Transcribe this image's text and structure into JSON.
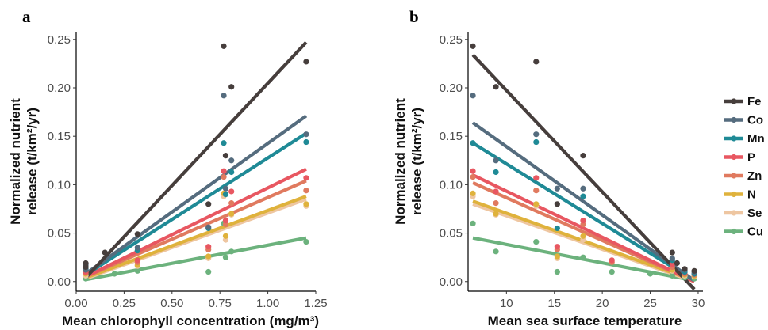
{
  "legend": [
    "Fe",
    "Co",
    "Mn",
    "P",
    "Zn",
    "N",
    "Se",
    "Cu"
  ],
  "colors": {
    "Fe": "#463e3c",
    "Co": "#556c7e",
    "Mn": "#1f8a96",
    "P": "#e85761",
    "Zn": "#e07a5f",
    "N": "#dfb23c",
    "Se": "#eec6a1",
    "Cu": "#6cb27d"
  },
  "chart_data": [
    {
      "type": "scatter",
      "panel_label": "a",
      "xlabel": "Mean chlorophyll concentration (mg/m³)",
      "ylabel_line1": "Normalized nutrient",
      "ylabel_line2": "release (t/km²/yr)",
      "xlim": [
        0,
        1.25
      ],
      "ylim": [
        -0.01,
        0.258
      ],
      "xticks": [
        0.0,
        0.25,
        0.5,
        0.75,
        1.0,
        1.25
      ],
      "xtick_labels": [
        "0.00",
        "0.25",
        "0.50",
        "0.75",
        "1.00",
        "1.25"
      ],
      "yticks": [
        0.0,
        0.05,
        0.1,
        0.15,
        0.2,
        0.25
      ],
      "ytick_labels": [
        "0.00",
        "0.05",
        "0.10",
        "0.15",
        "0.20",
        "0.25"
      ],
      "grid": false,
      "series": [
        {
          "name": "Fe",
          "x": [
            0.05,
            0.05,
            0.15,
            0.32,
            0.69,
            0.77,
            0.78,
            0.81,
            1.2
          ],
          "y": [
            0.019,
            0.015,
            0.03,
            0.049,
            0.08,
            0.243,
            0.13,
            0.201,
            0.227
          ],
          "fit": [
            [
              0.05,
              0.004
            ],
            [
              1.2,
              0.247
            ]
          ]
        },
        {
          "name": "Co",
          "x": [
            0.05,
            0.05,
            0.32,
            0.69,
            0.77,
            0.78,
            0.81,
            1.2
          ],
          "y": [
            0.017,
            0.012,
            0.035,
            0.056,
            0.192,
            0.096,
            0.125,
            0.152
          ],
          "fit": [
            [
              0.05,
              0.008
            ],
            [
              1.2,
              0.171
            ]
          ]
        },
        {
          "name": "Mn",
          "x": [
            0.05,
            0.32,
            0.69,
            0.77,
            0.78,
            0.81,
            1.2
          ],
          "y": [
            0.013,
            0.032,
            0.055,
            0.143,
            0.09,
            0.113,
            0.144
          ],
          "fit": [
            [
              0.05,
              0.007
            ],
            [
              1.2,
              0.153
            ]
          ]
        },
        {
          "name": "P",
          "x": [
            0.05,
            0.32,
            0.69,
            0.77,
            0.78,
            0.81,
            1.2
          ],
          "y": [
            0.01,
            0.022,
            0.036,
            0.114,
            0.063,
            0.093,
            0.107
          ],
          "fit": [
            [
              0.05,
              0.005
            ],
            [
              1.2,
              0.116
            ]
          ]
        },
        {
          "name": "Zn",
          "x": [
            0.05,
            0.32,
            0.69,
            0.77,
            0.78,
            0.81,
            1.2
          ],
          "y": [
            0.009,
            0.02,
            0.033,
            0.108,
            0.059,
            0.081,
            0.094
          ],
          "fit": [
            [
              0.05,
              0.005
            ],
            [
              1.2,
              0.104
            ]
          ]
        },
        {
          "name": "N",
          "x": [
            0.05,
            0.32,
            0.69,
            0.77,
            0.78,
            0.81,
            1.2
          ],
          "y": [
            0.008,
            0.017,
            0.026,
            0.091,
            0.047,
            0.07,
            0.08
          ],
          "fit": [
            [
              0.05,
              0.004
            ],
            [
              1.2,
              0.088
            ]
          ]
        },
        {
          "name": "Se",
          "x": [
            0.05,
            0.32,
            0.69,
            0.77,
            0.78,
            0.81,
            1.2
          ],
          "y": [
            0.006,
            0.016,
            0.024,
            0.088,
            0.043,
            0.069,
            0.078
          ],
          "fit": [
            [
              0.05,
              0.003
            ],
            [
              1.2,
              0.085
            ]
          ]
        },
        {
          "name": "Cu",
          "x": [
            0.05,
            0.2,
            0.32,
            0.69,
            0.77,
            0.78,
            0.81,
            1.2
          ],
          "y": [
            0.003,
            0.008,
            0.011,
            0.01,
            0.06,
            0.025,
            0.031,
            0.041
          ],
          "fit": [
            [
              0.05,
              0.002
            ],
            [
              1.2,
              0.045
            ]
          ]
        }
      ]
    },
    {
      "type": "scatter",
      "panel_label": "b",
      "xlabel": "Mean sea surface temperature",
      "ylabel_line1": "Normalized nutrient",
      "ylabel_line2": "release (t/km²/yr)",
      "xlim": [
        6.0,
        30.5
      ],
      "ylim": [
        -0.01,
        0.258
      ],
      "xticks": [
        10,
        15,
        20,
        25,
        30
      ],
      "xtick_labels": [
        "10",
        "15",
        "20",
        "25",
        "30"
      ],
      "yticks": [
        0.0,
        0.05,
        0.1,
        0.15,
        0.2,
        0.25
      ],
      "ytick_labels": [
        "0.00",
        "0.05",
        "0.10",
        "0.15",
        "0.20",
        "0.25"
      ],
      "grid": false,
      "series": [
        {
          "name": "Fe",
          "x": [
            6.5,
            8.9,
            13.1,
            15.3,
            18.0,
            27.3,
            27.8,
            28.6,
            29.6
          ],
          "y": [
            0.243,
            0.201,
            0.227,
            0.08,
            0.13,
            0.03,
            0.019,
            0.013,
            0.011
          ],
          "fit": [
            [
              6.5,
              0.234
            ],
            [
              29.6,
              -0.008
            ]
          ]
        },
        {
          "name": "Co",
          "x": [
            6.5,
            8.9,
            13.1,
            15.3,
            18.0,
            27.3,
            28.6,
            29.6
          ],
          "y": [
            0.192,
            0.125,
            0.152,
            0.096,
            0.096,
            0.024,
            0.012,
            0.01
          ],
          "fit": [
            [
              6.5,
              0.164
            ],
            [
              29.6,
              0.001
            ]
          ]
        },
        {
          "name": "Mn",
          "x": [
            6.5,
            8.9,
            13.1,
            15.3,
            18.0,
            27.3,
            28.6,
            29.6
          ],
          "y": [
            0.143,
            0.113,
            0.144,
            0.055,
            0.088,
            0.022,
            0.01,
            0.008
          ],
          "fit": [
            [
              6.5,
              0.143
            ],
            [
              29.6,
              0.001
            ]
          ]
        },
        {
          "name": "P",
          "x": [
            6.5,
            8.9,
            13.1,
            15.3,
            18.0,
            21.0,
            27.3,
            28.6,
            29.6
          ],
          "y": [
            0.114,
            0.093,
            0.107,
            0.036,
            0.063,
            0.022,
            0.018,
            0.009,
            0.008
          ],
          "fit": [
            [
              6.5,
              0.11
            ],
            [
              29.6,
              0.0
            ]
          ]
        },
        {
          "name": "Zn",
          "x": [
            6.5,
            8.9,
            13.1,
            15.3,
            18.0,
            21.0,
            27.3,
            28.6,
            29.6
          ],
          "y": [
            0.108,
            0.081,
            0.094,
            0.033,
            0.059,
            0.02,
            0.015,
            0.008,
            0.007
          ],
          "fit": [
            [
              6.5,
              0.102
            ],
            [
              29.6,
              0.0
            ]
          ]
        },
        {
          "name": "N",
          "x": [
            6.5,
            8.9,
            13.1,
            15.3,
            18.0,
            27.3,
            28.6,
            29.6
          ],
          "y": [
            0.091,
            0.07,
            0.08,
            0.026,
            0.047,
            0.012,
            0.007,
            0.006
          ],
          "fit": [
            [
              6.5,
              0.083
            ],
            [
              29.6,
              0.001
            ]
          ]
        },
        {
          "name": "Se",
          "x": [
            6.5,
            8.9,
            13.1,
            15.3,
            18.0,
            27.3,
            28.6,
            29.6
          ],
          "y": [
            0.088,
            0.069,
            0.078,
            0.024,
            0.043,
            0.011,
            0.006,
            0.005
          ],
          "fit": [
            [
              6.5,
              0.08
            ],
            [
              29.6,
              0.0
            ]
          ]
        },
        {
          "name": "Cu",
          "x": [
            6.5,
            8.9,
            13.1,
            15.3,
            18.0,
            21.0,
            25.0,
            27.3,
            28.6,
            29.6
          ],
          "y": [
            0.06,
            0.031,
            0.041,
            0.01,
            0.025,
            0.01,
            0.008,
            0.006,
            0.004,
            0.003
          ],
          "fit": [
            [
              6.5,
              0.045
            ],
            [
              29.6,
              0.001
            ]
          ]
        }
      ]
    }
  ]
}
